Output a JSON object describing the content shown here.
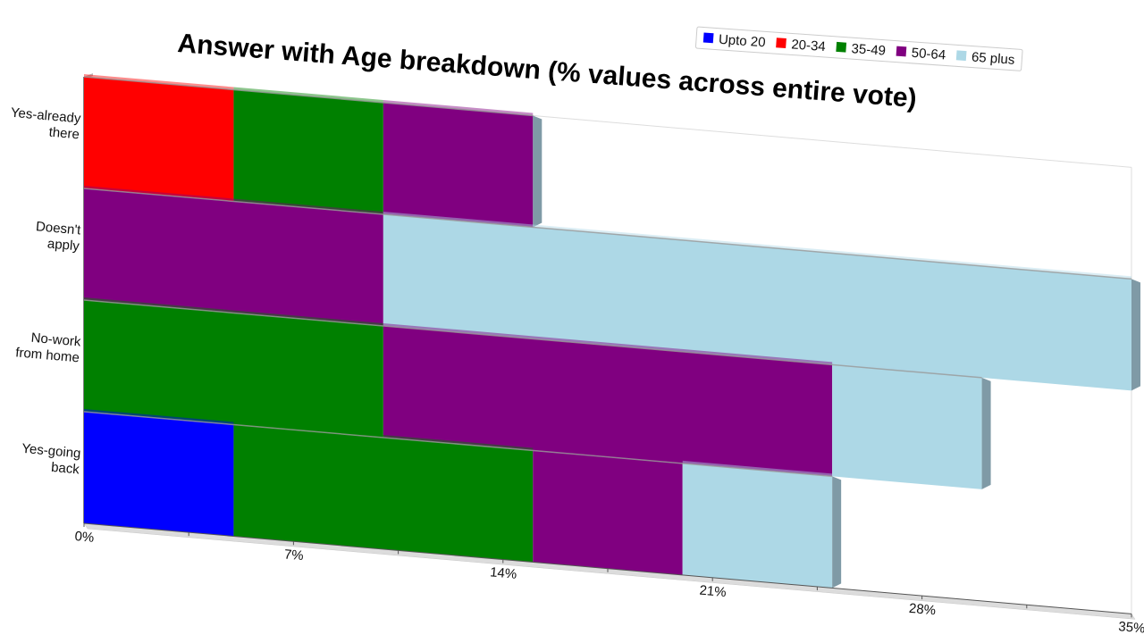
{
  "chart_data": {
    "type": "bar",
    "orientation": "horizontal",
    "stacked": true,
    "title": "Answer with Age breakdown (% values across entire vote)",
    "categories": [
      "Yes-already there",
      "Doesn't apply",
      "No-work from home",
      "Yes-going back"
    ],
    "category_label_lines": [
      [
        "Yes-already",
        "there"
      ],
      [
        "Doesn't",
        "apply"
      ],
      [
        "No-work",
        "from home"
      ],
      [
        "Yes-going",
        "back"
      ]
    ],
    "series": [
      {
        "name": "Upto 20",
        "color": "#0000ff",
        "values": [
          0,
          0,
          0,
          5
        ]
      },
      {
        "name": "20-34",
        "color": "#ff0000",
        "values": [
          5,
          0,
          0,
          0
        ]
      },
      {
        "name": "35-49",
        "color": "#008000",
        "values": [
          5,
          0,
          10,
          10
        ]
      },
      {
        "name": "50-64",
        "color": "#800080",
        "values": [
          5,
          10,
          15,
          5
        ]
      },
      {
        "name": "65 plus",
        "color": "#add8e6",
        "values": [
          0,
          25,
          5,
          5
        ]
      }
    ],
    "xlim": [
      0,
      35
    ],
    "xticks": [
      0,
      7,
      14,
      21,
      28,
      35
    ],
    "xtick_labels": [
      "0%",
      "7%",
      "14%",
      "21%",
      "28%",
      "35%"
    ],
    "legend_position": "top-right",
    "grid": false
  }
}
